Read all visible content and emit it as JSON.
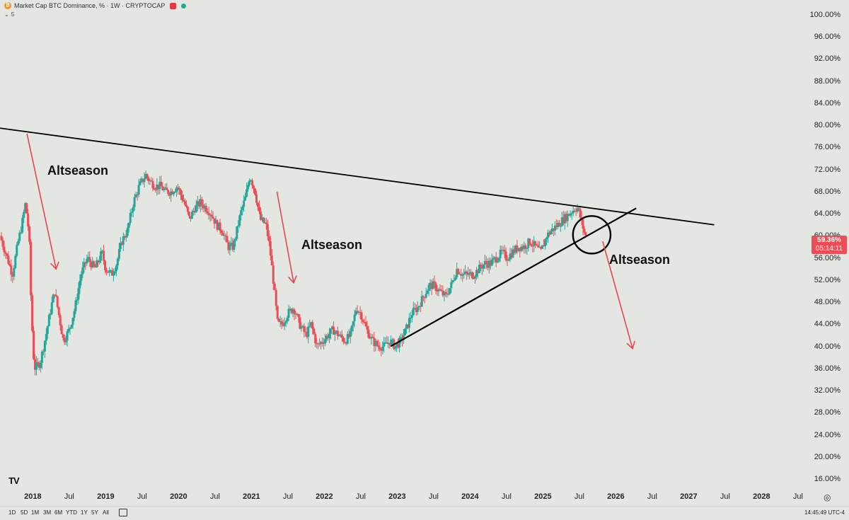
{
  "header": {
    "title": "Market Cap BTC Dominance, % · 1W · CRYPTOCAP",
    "collapse_count": "5",
    "btc_symbol": "₿"
  },
  "colors": {
    "background": "#e4e6e1",
    "up_candle": "#26a69a",
    "down_candle": "#ef4d56",
    "trendline": "#000000",
    "arrow": "#e8454f",
    "price_tag": "#ef4d56"
  },
  "price_tag": {
    "price": "59.36%",
    "countdown": "05:14:11"
  },
  "annotations": [
    "Altseason",
    "Altseason",
    "Altseason"
  ],
  "bottom": {
    "timeframes": [
      "1D",
      "5D",
      "1M",
      "3M",
      "6M",
      "YTD",
      "1Y",
      "5Y",
      "All"
    ],
    "time": "14:45:49 UTC-4"
  },
  "logo": "TV",
  "chart_data": {
    "type": "candlestick",
    "title": "Market Cap BTC Dominance, %",
    "interval": "1W",
    "ylim": [
      16,
      100
    ],
    "xlim": [
      2017.55,
      2029.2
    ],
    "y_ticks": [
      "16.00%",
      "20.00%",
      "24.00%",
      "28.00%",
      "32.00%",
      "36.00%",
      "40.00%",
      "44.00%",
      "48.00%",
      "52.00%",
      "56.00%",
      "60.00%",
      "64.00%",
      "68.00%",
      "72.00%",
      "76.00%",
      "80.00%",
      "84.00%",
      "88.00%",
      "92.00%",
      "96.00%",
      "100.00%"
    ],
    "x_ticks": [
      {
        "label": "2018",
        "x": 2018.0,
        "bold": true
      },
      {
        "label": "Jul",
        "x": 2018.5,
        "bold": false
      },
      {
        "label": "2019",
        "x": 2019.0,
        "bold": true
      },
      {
        "label": "Jul",
        "x": 2019.5,
        "bold": false
      },
      {
        "label": "2020",
        "x": 2020.0,
        "bold": true
      },
      {
        "label": "Jul",
        "x": 2020.5,
        "bold": false
      },
      {
        "label": "2021",
        "x": 2021.0,
        "bold": true
      },
      {
        "label": "Jul",
        "x": 2021.5,
        "bold": false
      },
      {
        "label": "2022",
        "x": 2022.0,
        "bold": true
      },
      {
        "label": "Jul",
        "x": 2022.5,
        "bold": false
      },
      {
        "label": "2023",
        "x": 2023.0,
        "bold": true
      },
      {
        "label": "Jul",
        "x": 2023.5,
        "bold": false
      },
      {
        "label": "2024",
        "x": 2024.0,
        "bold": true
      },
      {
        "label": "Jul",
        "x": 2024.5,
        "bold": false
      },
      {
        "label": "2025",
        "x": 2025.0,
        "bold": true
      },
      {
        "label": "Jul",
        "x": 2025.5,
        "bold": false
      },
      {
        "label": "2026",
        "x": 2026.0,
        "bold": true
      },
      {
        "label": "Jul",
        "x": 2026.5,
        "bold": false
      },
      {
        "label": "2027",
        "x": 2027.0,
        "bold": true
      },
      {
        "label": "Jul",
        "x": 2027.5,
        "bold": false
      },
      {
        "label": "2028",
        "x": 2028.0,
        "bold": true
      },
      {
        "label": "Jul",
        "x": 2028.5,
        "bold": false
      }
    ],
    "series": [
      {
        "type": "close",
        "points": [
          [
            2017.55,
            60
          ],
          [
            2017.65,
            56
          ],
          [
            2017.72,
            53
          ],
          [
            2017.8,
            59
          ],
          [
            2017.85,
            62
          ],
          [
            2017.9,
            66
          ],
          [
            2017.95,
            60
          ],
          [
            2017.98,
            46
          ],
          [
            2018.02,
            36
          ],
          [
            2018.1,
            37
          ],
          [
            2018.18,
            42
          ],
          [
            2018.25,
            47
          ],
          [
            2018.3,
            50
          ],
          [
            2018.38,
            44
          ],
          [
            2018.42,
            41
          ],
          [
            2018.5,
            43
          ],
          [
            2018.58,
            47
          ],
          [
            2018.66,
            53
          ],
          [
            2018.75,
            56
          ],
          [
            2018.85,
            54
          ],
          [
            2018.95,
            57
          ],
          [
            2019.0,
            54
          ],
          [
            2019.08,
            53
          ],
          [
            2019.15,
            55
          ],
          [
            2019.22,
            59
          ],
          [
            2019.3,
            61
          ],
          [
            2019.38,
            66
          ],
          [
            2019.46,
            69
          ],
          [
            2019.55,
            71
          ],
          [
            2019.6,
            70
          ],
          [
            2019.68,
            69
          ],
          [
            2019.75,
            69
          ],
          [
            2019.82,
            68
          ],
          [
            2019.9,
            68
          ],
          [
            2019.98,
            69
          ],
          [
            2020.08,
            66
          ],
          [
            2020.15,
            63
          ],
          [
            2020.22,
            65
          ],
          [
            2020.3,
            66
          ],
          [
            2020.38,
            65
          ],
          [
            2020.45,
            64
          ],
          [
            2020.52,
            62
          ],
          [
            2020.6,
            61
          ],
          [
            2020.68,
            58
          ],
          [
            2020.75,
            58
          ],
          [
            2020.85,
            64
          ],
          [
            2020.92,
            67
          ],
          [
            2020.98,
            71
          ],
          [
            2021.05,
            68
          ],
          [
            2021.12,
            63
          ],
          [
            2021.2,
            62
          ],
          [
            2021.25,
            58
          ],
          [
            2021.3,
            52
          ],
          [
            2021.36,
            44
          ],
          [
            2021.42,
            44
          ],
          [
            2021.5,
            46
          ],
          [
            2021.58,
            47
          ],
          [
            2021.66,
            44
          ],
          [
            2021.75,
            42
          ],
          [
            2021.82,
            44
          ],
          [
            2021.9,
            40
          ],
          [
            2021.98,
            41
          ],
          [
            2022.05,
            42
          ],
          [
            2022.12,
            43
          ],
          [
            2022.2,
            42
          ],
          [
            2022.28,
            41
          ],
          [
            2022.36,
            42
          ],
          [
            2022.44,
            47
          ],
          [
            2022.5,
            46
          ],
          [
            2022.58,
            43
          ],
          [
            2022.66,
            41
          ],
          [
            2022.74,
            40
          ],
          [
            2022.82,
            40
          ],
          [
            2022.9,
            41
          ],
          [
            2022.97,
            40
          ],
          [
            2023.05,
            41
          ],
          [
            2023.12,
            43
          ],
          [
            2023.2,
            46
          ],
          [
            2023.28,
            47
          ],
          [
            2023.36,
            49
          ],
          [
            2023.44,
            51
          ],
          [
            2023.5,
            51
          ],
          [
            2023.58,
            50
          ],
          [
            2023.66,
            49
          ],
          [
            2023.74,
            51
          ],
          [
            2023.82,
            54
          ],
          [
            2023.9,
            53
          ],
          [
            2023.97,
            53
          ],
          [
            2024.05,
            53
          ],
          [
            2024.12,
            54
          ],
          [
            2024.2,
            55
          ],
          [
            2024.28,
            55
          ],
          [
            2024.36,
            56
          ],
          [
            2024.44,
            57
          ],
          [
            2024.5,
            56
          ],
          [
            2024.58,
            57
          ],
          [
            2024.66,
            58
          ],
          [
            2024.74,
            58
          ],
          [
            2024.82,
            59
          ],
          [
            2024.9,
            58
          ],
          [
            2024.97,
            57
          ],
          [
            2025.05,
            60
          ],
          [
            2025.12,
            61
          ],
          [
            2025.2,
            62
          ],
          [
            2025.28,
            63
          ],
          [
            2025.36,
            64
          ],
          [
            2025.44,
            65
          ],
          [
            2025.48,
            65
          ],
          [
            2025.52,
            63
          ],
          [
            2025.56,
            61
          ],
          [
            2025.6,
            59.4
          ]
        ]
      }
    ],
    "trendlines": [
      {
        "name": "descending resistance",
        "from": [
          2017.55,
          79.5
        ],
        "to": [
          2027.35,
          62
        ]
      },
      {
        "name": "ascending support",
        "from": [
          2022.91,
          40
        ],
        "to": [
          2026.28,
          65
        ]
      }
    ],
    "arrows": [
      {
        "from": [
          2017.92,
          78.5
        ],
        "to": [
          2018.32,
          54
        ]
      },
      {
        "from": [
          2021.35,
          68
        ],
        "to": [
          2021.58,
          51.5
        ]
      },
      {
        "from": [
          2025.82,
          59
        ],
        "to": [
          2026.23,
          39.6
        ]
      }
    ],
    "circle": {
      "center": [
        2025.67,
        60.2
      ],
      "radius_y": 3.4
    }
  }
}
